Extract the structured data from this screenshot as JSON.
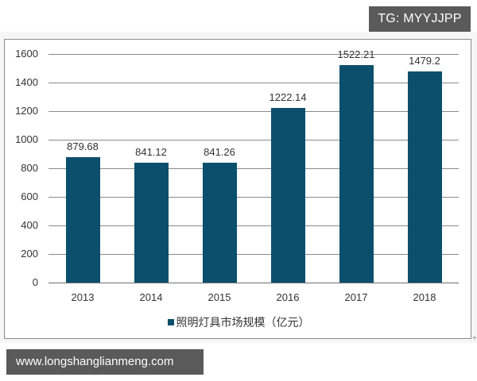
{
  "watermarks": {
    "tg_badge": "TG: MYYJJPP",
    "url_badge": "www.longshanglianmeng.com"
  },
  "colors": {
    "bar": "#0b4f6c",
    "badge_bg": "#5a5a5a",
    "gridline": "#8a8a8a",
    "text": "#333333"
  },
  "chart_data": {
    "type": "bar",
    "title": "",
    "xlabel": "",
    "ylabel": "",
    "categories": [
      "2013",
      "2014",
      "2015",
      "2016",
      "2017",
      "2018"
    ],
    "series": [
      {
        "name": "照明灯具市场规模（亿元）",
        "values": [
          879.68,
          841.12,
          841.26,
          1222.14,
          1522.21,
          1479.2
        ],
        "color": "#0b4f6c"
      }
    ],
    "data_labels": [
      "879.68",
      "841.12",
      "841.26",
      "1222.14",
      "1522.21",
      "1479.2"
    ],
    "ylim": [
      0,
      1600
    ],
    "yticks": [
      "0",
      "200",
      "400",
      "600",
      "800",
      "1000",
      "1200",
      "1400",
      "1600"
    ],
    "grid": true,
    "legend_position": "bottom",
    "legend_label": "照明灯具市场规模（亿元）"
  }
}
